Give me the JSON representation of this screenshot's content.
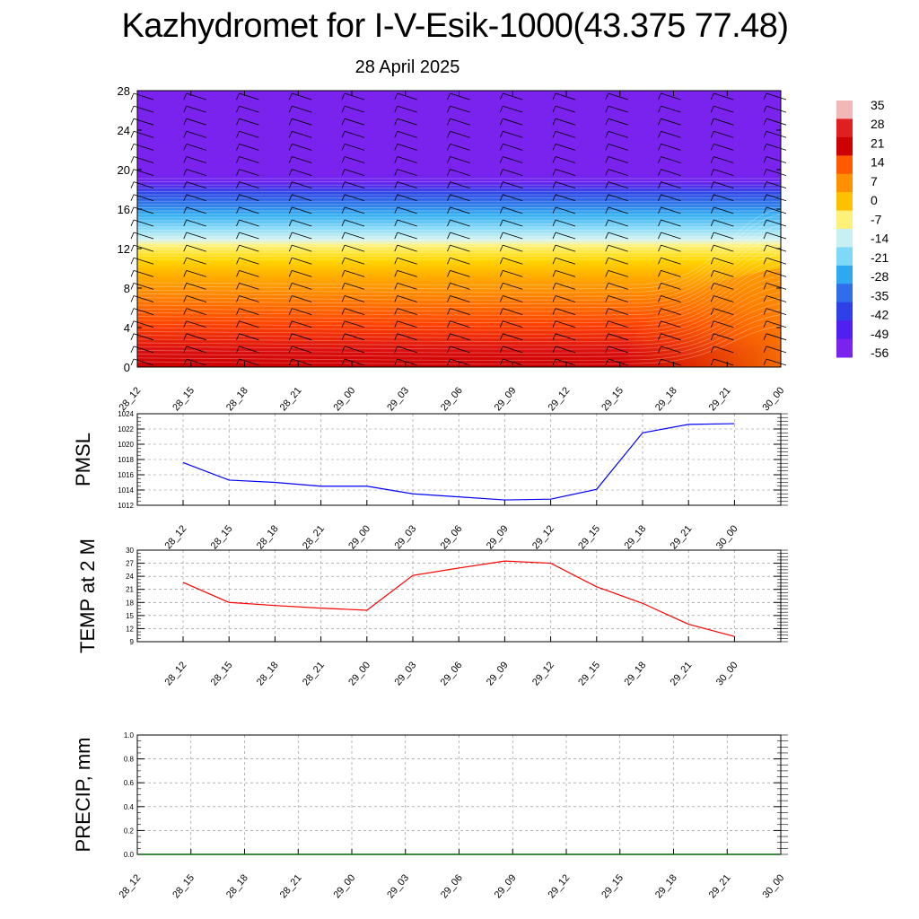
{
  "title": "Kazhydromet for I-V-Esik-1000(43.375 77.48)",
  "subtitle": "28 April 2025",
  "chart_data": [
    {
      "type": "heatmap",
      "name": "temperature-height-section",
      "x_categories": [
        "28_12",
        "28_15",
        "28_18",
        "28_21",
        "29_00",
        "29_03",
        "29_06",
        "29_09",
        "29_12",
        "29_15",
        "29_18",
        "29_21",
        "30_00"
      ],
      "y_ticks": [
        "0",
        "4",
        "8",
        "12",
        "16",
        "20",
        "24",
        "28"
      ],
      "ylim": [
        0,
        28
      ],
      "colorbar_labels": [
        "35",
        "28",
        "21",
        "14",
        "7",
        "0",
        "-7",
        "-14",
        "-21",
        "-28",
        "-35",
        "-42",
        "-49",
        "-56"
      ],
      "colorbar_colors": [
        "#f2b8b8",
        "#e02020",
        "#cc0000",
        "#ff5a00",
        "#ff9000",
        "#ffc000",
        "#fff07a",
        "#c8f0f0",
        "#80d8f8",
        "#30a8f0",
        "#2f6ee8",
        "#3040e8",
        "#5020f0",
        "#7a22ee"
      ],
      "wind_barbs": true
    },
    {
      "type": "line",
      "name": "PMSL",
      "ylabel": "PMSL",
      "x": [
        "28_12",
        "28_15",
        "28_18",
        "28_21",
        "29_00",
        "29_03",
        "29_06",
        "29_09",
        "29_12",
        "29_15",
        "29_18",
        "29_21",
        "30_00"
      ],
      "y_ticks": [
        "1012",
        "1014",
        "1016",
        "1018",
        "1020",
        "1022",
        "1024"
      ],
      "ylim": [
        1012,
        1024
      ],
      "values": [
        1017.6,
        1015.3,
        1015.0,
        1014.5,
        1014.5,
        1013.5,
        1013.1,
        1012.7,
        1012.8,
        1014.1,
        1021.5,
        1022.6,
        1022.7
      ],
      "color": "#0000ff",
      "grid": true
    },
    {
      "type": "line",
      "name": "TEMP at 2 M",
      "ylabel": "TEMP at 2 M",
      "x": [
        "28_12",
        "28_15",
        "28_18",
        "28_21",
        "29_00",
        "29_03",
        "29_06",
        "29_09",
        "29_12",
        "29_15",
        "29_18",
        "29_21",
        "30_00"
      ],
      "y_ticks": [
        "9",
        "12",
        "15",
        "18",
        "21",
        "24",
        "27",
        "30"
      ],
      "ylim": [
        9,
        30
      ],
      "values": [
        22.6,
        18.0,
        17.3,
        16.7,
        16.2,
        24.2,
        25.9,
        27.5,
        27.0,
        21.6,
        17.8,
        13.0,
        10.2
      ],
      "color": "#ff0000",
      "grid": true
    },
    {
      "type": "line",
      "name": "PRECIP, mm",
      "ylabel": "PRECIP, mm",
      "x_categories": [
        "28_12",
        "28_15",
        "28_18",
        "28_21",
        "29_00",
        "29_03",
        "29_06",
        "29_09",
        "29_12",
        "29_15",
        "29_18",
        "29_21",
        "30_00"
      ],
      "y_ticks": [
        "0.0",
        "0.2",
        "0.4",
        "0.6",
        "0.8",
        "1.0"
      ],
      "ylim": [
        0,
        1
      ],
      "values": [
        0,
        0,
        0,
        0,
        0,
        0,
        0,
        0,
        0,
        0,
        0,
        0,
        0
      ],
      "color": "#006400",
      "grid": true
    }
  ]
}
